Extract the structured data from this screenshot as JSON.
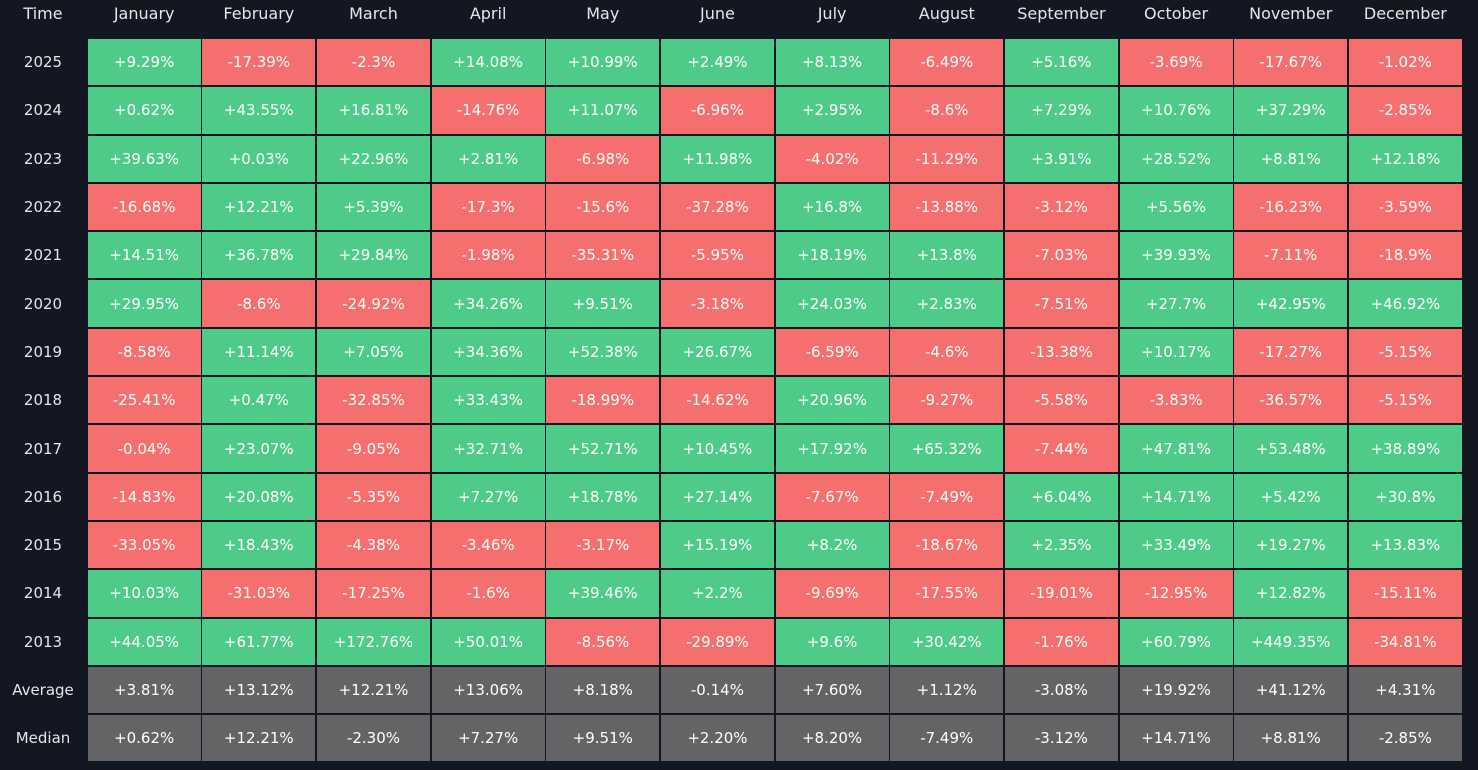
{
  "table": {
    "header": [
      "Time",
      "January",
      "February",
      "March",
      "April",
      "May",
      "June",
      "July",
      "August",
      "September",
      "October",
      "November",
      "December"
    ],
    "rows": [
      [
        "2025",
        "+9.29%",
        "-17.39%",
        "-2.3%",
        "+14.08%",
        "+10.99%",
        "+2.49%",
        "+8.13%",
        "-6.49%",
        "+5.16%",
        "-3.69%",
        "-17.67%",
        "-1.02%"
      ],
      [
        "2024",
        "+0.62%",
        "+43.55%",
        "+16.81%",
        "-14.76%",
        "+11.07%",
        "-6.96%",
        "+2.95%",
        "-8.6%",
        "+7.29%",
        "+10.76%",
        "+37.29%",
        "-2.85%"
      ],
      [
        "2023",
        "+39.63%",
        "+0.03%",
        "+22.96%",
        "+2.81%",
        "-6.98%",
        "+11.98%",
        "-4.02%",
        "-11.29%",
        "+3.91%",
        "+28.52%",
        "+8.81%",
        "+12.18%"
      ],
      [
        "2022",
        "-16.68%",
        "+12.21%",
        "+5.39%",
        "-17.3%",
        "-15.6%",
        "-37.28%",
        "+16.8%",
        "-13.88%",
        "-3.12%",
        "+5.56%",
        "-16.23%",
        "-3.59%"
      ],
      [
        "2021",
        "+14.51%",
        "+36.78%",
        "+29.84%",
        "-1.98%",
        "-35.31%",
        "-5.95%",
        "+18.19%",
        "+13.8%",
        "-7.03%",
        "+39.93%",
        "-7.11%",
        "-18.9%"
      ],
      [
        "2020",
        "+29.95%",
        "-8.6%",
        "-24.92%",
        "+34.26%",
        "+9.51%",
        "-3.18%",
        "+24.03%",
        "+2.83%",
        "-7.51%",
        "+27.7%",
        "+42.95%",
        "+46.92%"
      ],
      [
        "2019",
        "-8.58%",
        "+11.14%",
        "+7.05%",
        "+34.36%",
        "+52.38%",
        "+26.67%",
        "-6.59%",
        "-4.6%",
        "-13.38%",
        "+10.17%",
        "-17.27%",
        "-5.15%"
      ],
      [
        "2018",
        "-25.41%",
        "+0.47%",
        "-32.85%",
        "+33.43%",
        "-18.99%",
        "-14.62%",
        "+20.96%",
        "-9.27%",
        "-5.58%",
        "-3.83%",
        "-36.57%",
        "-5.15%"
      ],
      [
        "2017",
        "-0.04%",
        "+23.07%",
        "-9.05%",
        "+32.71%",
        "+52.71%",
        "+10.45%",
        "+17.92%",
        "+65.32%",
        "-7.44%",
        "+47.81%",
        "+53.48%",
        "+38.89%"
      ],
      [
        "2016",
        "-14.83%",
        "+20.08%",
        "-5.35%",
        "+7.27%",
        "+18.78%",
        "+27.14%",
        "-7.67%",
        "-7.49%",
        "+6.04%",
        "+14.71%",
        "+5.42%",
        "+30.8%"
      ],
      [
        "2015",
        "-33.05%",
        "+18.43%",
        "-4.38%",
        "-3.46%",
        "-3.17%",
        "+15.19%",
        "+8.2%",
        "-18.67%",
        "+2.35%",
        "+33.49%",
        "+19.27%",
        "+13.83%"
      ],
      [
        "2014",
        "+10.03%",
        "-31.03%",
        "-17.25%",
        "-1.6%",
        "+39.46%",
        "+2.2%",
        "-9.69%",
        "-17.55%",
        "-19.01%",
        "-12.95%",
        "+12.82%",
        "-15.11%"
      ],
      [
        "2013",
        "+44.05%",
        "+61.77%",
        "+172.76%",
        "+50.01%",
        "-8.56%",
        "-29.89%",
        "+9.6%",
        "+30.42%",
        "-1.76%",
        "+60.79%",
        "+449.35%",
        "-34.81%"
      ]
    ],
    "summary_rows": [
      [
        "Average",
        "+3.81%",
        "+13.12%",
        "+12.21%",
        "+13.06%",
        "+8.18%",
        "-0.14%",
        "+7.60%",
        "+1.12%",
        "-3.08%",
        "+19.92%",
        "+41.12%",
        "+4.31%"
      ],
      [
        "Median",
        "+0.62%",
        "+12.21%",
        "-2.30%",
        "+7.27%",
        "+9.51%",
        "+2.20%",
        "+8.20%",
        "-7.49%",
        "-3.12%",
        "+14.71%",
        "+8.81%",
        "-2.85%"
      ]
    ]
  }
}
